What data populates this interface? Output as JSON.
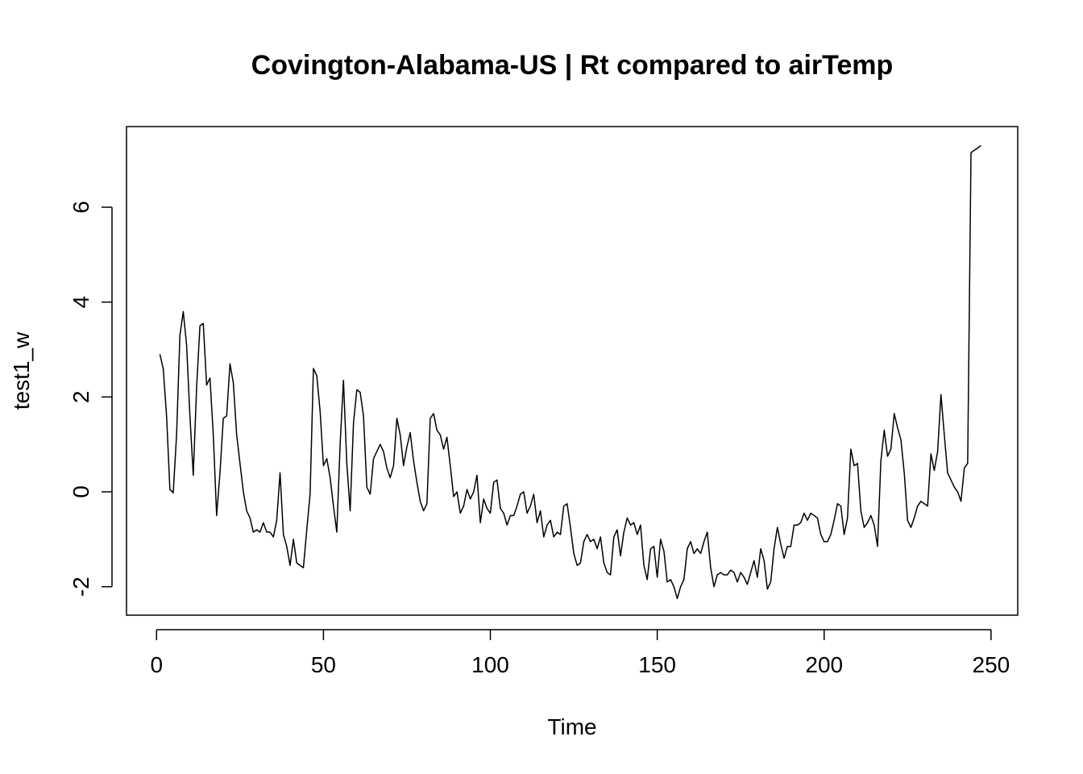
{
  "chart_data": {
    "type": "line",
    "title": "Covington-Alabama-US | Rt compared to airTemp",
    "xlabel": "Time",
    "ylabel": "test1_w",
    "xlim": [
      -9,
      258
    ],
    "ylim": [
      -2.6,
      7.7
    ],
    "x_ticks": [
      0,
      50,
      100,
      150,
      200,
      250
    ],
    "y_ticks": [
      -2,
      0,
      2,
      4,
      6
    ],
    "grid": false,
    "legend": "none",
    "line_color": "#000000",
    "series": [
      {
        "values": [
          2.9,
          2.6,
          1.6,
          0.05,
          -0.02,
          1.2,
          3.3,
          3.8,
          3.1,
          1.6,
          0.35,
          2.2,
          3.5,
          3.55,
          2.25,
          2.4,
          1.2,
          -0.5,
          0.4,
          1.55,
          1.6,
          2.7,
          2.3,
          1.2,
          0.6,
          0.0,
          -0.4,
          -0.55,
          -0.85,
          -0.8,
          -0.85,
          -0.65,
          -0.85,
          -0.85,
          -0.95,
          -0.6,
          0.4,
          -0.9,
          -1.15,
          -1.55,
          -1.0,
          -1.5,
          -1.55,
          -1.6,
          -0.8,
          -0.05,
          2.6,
          2.45,
          1.7,
          0.55,
          0.7,
          0.3,
          -0.3,
          -0.85,
          1.0,
          2.35,
          0.6,
          -0.4,
          1.45,
          2.15,
          2.1,
          1.6,
          0.1,
          -0.05,
          0.7,
          0.85,
          1.0,
          0.85,
          0.5,
          0.3,
          0.55,
          1.55,
          1.2,
          0.55,
          0.95,
          1.25,
          0.65,
          0.2,
          -0.2,
          -0.4,
          -0.25,
          1.55,
          1.65,
          1.3,
          1.2,
          0.9,
          1.15,
          0.55,
          -0.1,
          0.0,
          -0.45,
          -0.3,
          0.05,
          -0.15,
          0.0,
          0.35,
          -0.65,
          -0.15,
          -0.35,
          -0.45,
          0.2,
          0.25,
          -0.35,
          -0.45,
          -0.7,
          -0.5,
          -0.5,
          -0.3,
          -0.05,
          0.0,
          -0.45,
          -0.3,
          -0.05,
          -0.65,
          -0.4,
          -0.95,
          -0.7,
          -0.6,
          -0.95,
          -0.85,
          -0.9,
          -0.3,
          -0.25,
          -0.75,
          -1.3,
          -1.55,
          -1.5,
          -1.05,
          -0.9,
          -1.05,
          -1.0,
          -1.2,
          -0.95,
          -1.5,
          -1.7,
          -1.75,
          -0.95,
          -0.8,
          -1.35,
          -0.85,
          -0.55,
          -0.7,
          -0.65,
          -0.9,
          -0.7,
          -1.55,
          -1.85,
          -1.2,
          -1.15,
          -1.8,
          -1.0,
          -1.25,
          -1.9,
          -1.85,
          -2.0,
          -2.25,
          -2.0,
          -1.85,
          -1.2,
          -1.05,
          -1.3,
          -1.2,
          -1.3,
          -1.05,
          -0.85,
          -1.6,
          -2.0,
          -1.75,
          -1.7,
          -1.75,
          -1.75,
          -1.65,
          -1.7,
          -1.9,
          -1.7,
          -1.8,
          -1.95,
          -1.7,
          -1.45,
          -1.8,
          -1.2,
          -1.45,
          -2.05,
          -1.9,
          -1.2,
          -0.75,
          -1.1,
          -1.4,
          -1.15,
          -1.15,
          -0.7,
          -0.7,
          -0.65,
          -0.45,
          -0.6,
          -0.45,
          -0.5,
          -0.55,
          -0.9,
          -1.05,
          -1.05,
          -0.9,
          -0.6,
          -0.25,
          -0.3,
          -0.9,
          -0.55,
          0.9,
          0.55,
          0.6,
          -0.4,
          -0.75,
          -0.65,
          -0.5,
          -0.7,
          -1.15,
          0.65,
          1.3,
          0.75,
          0.9,
          1.65,
          1.35,
          1.1,
          0.4,
          -0.6,
          -0.75,
          -0.55,
          -0.3,
          -0.2,
          -0.25,
          -0.3,
          0.8,
          0.45,
          0.85,
          2.05,
          1.2,
          0.4,
          0.25,
          0.1,
          0.0,
          -0.2,
          0.5,
          0.6,
          7.15,
          7.2,
          7.25,
          7.3
        ]
      }
    ]
  }
}
